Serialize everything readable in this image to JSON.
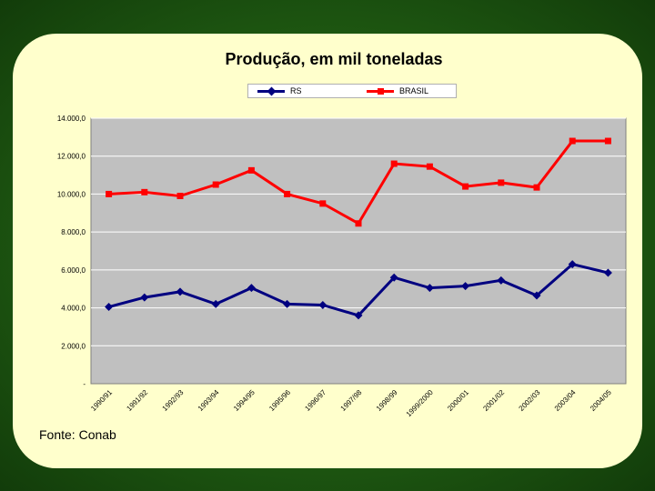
{
  "chart_data": {
    "type": "line",
    "title": "Produção, em mil toneladas",
    "xlabel": "",
    "ylabel": "",
    "ylim": [
      0,
      14000
    ],
    "yticks": [
      "-",
      "2.000,0",
      "4.000,0",
      "6.000,0",
      "8.000,0",
      "10.000,0",
      "12.000,0",
      "14.000,0"
    ],
    "categories": [
      "1990/91",
      "1991/92",
      "1992/93",
      "1993/94",
      "1994/95",
      "1995/96",
      "1996/97",
      "1997/98",
      "1998/99",
      "1999/2000",
      "2000/01",
      "2001/02",
      "2002/03",
      "2003/04",
      "2004/05"
    ],
    "series": [
      {
        "name": "RS",
        "color": "#000080",
        "marker": "diamond",
        "values": [
          4050,
          4550,
          4850,
          4200,
          5050,
          4200,
          4150,
          3600,
          5600,
          5050,
          5150,
          5450,
          4650,
          6300,
          5850
        ]
      },
      {
        "name": "BRASIL",
        "color": "#ff0000",
        "marker": "square",
        "values": [
          10000,
          10100,
          9900,
          10500,
          11250,
          10000,
          9500,
          8450,
          11600,
          11450,
          10400,
          10600,
          10350,
          12800,
          12800
        ]
      }
    ],
    "grid": true,
    "plot_background": "#c0c0c0",
    "legend_position": "top-center"
  },
  "source": "Fonte: Conab",
  "colors": {
    "background_outer": "#1f5a12",
    "panel": "#ffffcc"
  }
}
